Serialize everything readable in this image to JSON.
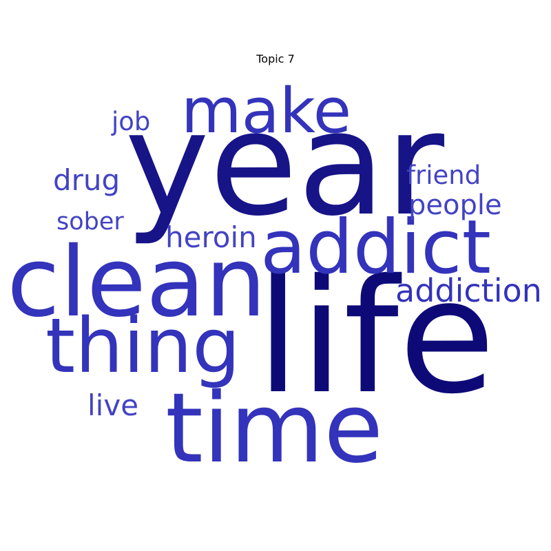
{
  "title": "Topic 7",
  "colors": {
    "darkest": "#0d0a78",
    "dark": "#171488",
    "medium": "#3333bb",
    "light": "#4343c4"
  },
  "words": [
    {
      "text": "life",
      "weight": 1.0,
      "color": "#0d0a78"
    },
    {
      "text": "year",
      "weight": 0.95,
      "color": "#171488"
    },
    {
      "text": "clean",
      "weight": 0.7,
      "color": "#3333bb"
    },
    {
      "text": "time",
      "weight": 0.67,
      "color": "#3333bb"
    },
    {
      "text": "addict",
      "weight": 0.55,
      "color": "#3333bb"
    },
    {
      "text": "thing",
      "weight": 0.52,
      "color": "#3333bb"
    },
    {
      "text": "make",
      "weight": 0.5,
      "color": "#3333bb"
    },
    {
      "text": "addiction",
      "weight": 0.3,
      "color": "#3333bb"
    },
    {
      "text": "heroin",
      "weight": 0.25,
      "color": "#4343c4"
    },
    {
      "text": "drug",
      "weight": 0.25,
      "color": "#4343c4"
    },
    {
      "text": "people",
      "weight": 0.24,
      "color": "#4343c4"
    },
    {
      "text": "live",
      "weight": 0.24,
      "color": "#4343c4"
    },
    {
      "text": "friend",
      "weight": 0.22,
      "color": "#4343c4"
    },
    {
      "text": "job",
      "weight": 0.21,
      "color": "#4343c4"
    },
    {
      "text": "sober",
      "weight": 0.2,
      "color": "#4343c4"
    }
  ]
}
